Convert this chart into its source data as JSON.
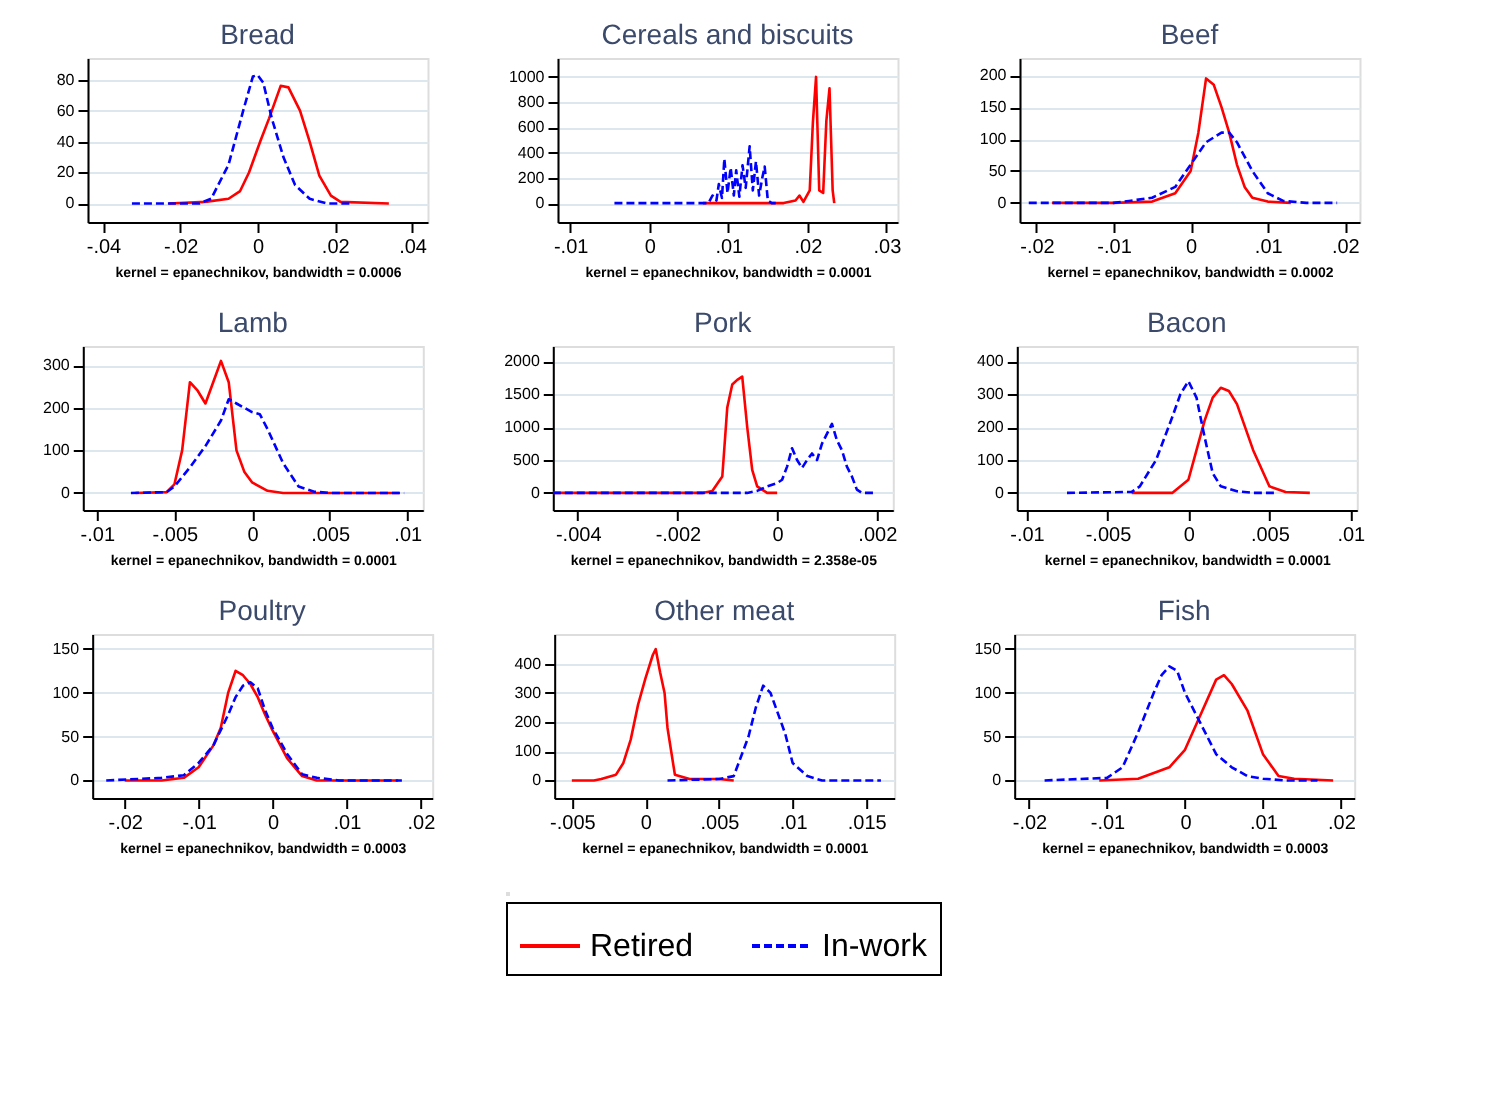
{
  "chart_data": [
    {
      "type": "line",
      "title": "Bread",
      "xlabel": "kernel = epanechnikov, bandwidth = 0.0006",
      "grid": "y",
      "legend": "bottom",
      "xlim": [
        -0.044,
        0.044
      ],
      "xticks": [
        {
          "value": -0.04,
          "label": "-.04"
        },
        {
          "value": -0.02,
          "label": "-.02"
        },
        {
          "value": 0,
          "label": "0"
        },
        {
          "value": 0.02,
          "label": ".02"
        },
        {
          "value": 0.04,
          "label": ".04"
        }
      ],
      "ylim": [
        -12,
        94
      ],
      "yticks": [
        0,
        20,
        40,
        60,
        80
      ],
      "series": [
        {
          "name": "Retired",
          "color": "#ff0000",
          "line_style": "solid",
          "x": [
            -0.023,
            -0.0135,
            -0.0075,
            -0.0045,
            -0.0022,
            0.0007,
            0.003,
            0.006,
            0.008,
            0.011,
            0.0135,
            0.016,
            0.019,
            0.0215,
            0.034
          ],
          "values": [
            0,
            1,
            3,
            8,
            20,
            40,
            55,
            76,
            75,
            60,
            40,
            18,
            5,
            1,
            0
          ]
        },
        {
          "name": "In-work",
          "color": "#0000ff",
          "line_style": "dashed",
          "x": [
            -0.0325,
            -0.015,
            -0.012,
            -0.0075,
            -0.0037,
            -0.0012,
            0,
            0.0015,
            0.0037,
            0.0067,
            0.0097,
            0.0135,
            0.018,
            0.021,
            0.024
          ],
          "values": [
            0,
            0,
            3,
            25,
            60,
            82,
            83,
            78,
            55,
            30,
            12,
            3,
            0,
            0,
            0
          ]
        }
      ]
    },
    {
      "type": "line",
      "title": "Cereals and biscuits",
      "xlabel": "kernel = epanechnikov, bandwidth = 0.0001",
      "grid": "y",
      "xlim": [
        -0.0116,
        0.0314
      ],
      "xticks": [
        {
          "value": -0.01,
          "label": "-.01"
        },
        {
          "value": 0,
          "label": "0"
        },
        {
          "value": 0.01,
          "label": ".01"
        },
        {
          "value": 0.02,
          "label": ".02"
        },
        {
          "value": 0.03,
          "label": ".03"
        }
      ],
      "ylim": [
        -150,
        1150
      ],
      "yticks": [
        0,
        200,
        400,
        600,
        800,
        1000
      ],
      "series": [
        {
          "color": "#ff0000",
          "line_style": "solid",
          "x": [
            0.0068,
            0.017,
            0.0185,
            0.019,
            0.0195,
            0.0203,
            0.0207,
            0.0211,
            0.0215,
            0.022,
            0.0224,
            0.0228,
            0.0232,
            0.0234
          ],
          "values": [
            0,
            0,
            20,
            60,
            10,
            100,
            640,
            1000,
            100,
            80,
            650,
            910,
            100,
            0
          ]
        },
        {
          "color": "#0000ff",
          "line_style": "dashed",
          "x": [
            -0.0044,
            0.006,
            0.0075,
            0.008,
            0.0085,
            0.0088,
            0.0092,
            0.0095,
            0.0099,
            0.0103,
            0.0107,
            0.011,
            0.0114,
            0.0118,
            0.0122,
            0.0127,
            0.0131,
            0.0135,
            0.0139,
            0.0143,
            0.0146,
            0.015,
            0.0155,
            0.016
          ],
          "values": [
            0,
            0,
            0,
            60,
            20,
            150,
            40,
            350,
            80,
            280,
            60,
            260,
            50,
            300,
            120,
            450,
            100,
            330,
            60,
            200,
            290,
            20,
            0,
            0
          ]
        }
      ]
    },
    {
      "type": "line",
      "title": "Beef",
      "xlabel": "kernel = epanechnikov, bandwidth = 0.0002",
      "grid": "y",
      "xlim": [
        -0.0222,
        0.0219
      ],
      "xticks": [
        {
          "value": -0.02,
          "label": "-.02"
        },
        {
          "value": -0.01,
          "label": "-.01"
        },
        {
          "value": 0,
          "label": "0"
        },
        {
          "value": 0.01,
          "label": ".01"
        },
        {
          "value": 0.02,
          "label": ".02"
        }
      ],
      "ylim": [
        -30,
        227
      ],
      "yticks": [
        0,
        50,
        100,
        150,
        200
      ],
      "series": [
        {
          "color": "#ff0000",
          "line_style": "solid",
          "x": [
            -0.018,
            -0.01,
            -0.005,
            -0.002,
            0,
            0.001,
            0.002,
            0.003,
            0.004,
            0.005,
            0.006,
            0.007,
            0.008,
            0.01,
            0.013
          ],
          "values": [
            0,
            0,
            2,
            15,
            50,
            110,
            195,
            185,
            150,
            110,
            60,
            25,
            8,
            2,
            0
          ]
        },
        {
          "color": "#0000ff",
          "line_style": "dashed",
          "x": [
            -0.021,
            -0.01,
            -0.008,
            -0.005,
            -0.002,
            0,
            0.002,
            0.004,
            0.005,
            0.006,
            0.008,
            0.01,
            0.012,
            0.015,
            0.019
          ],
          "values": [
            0,
            0,
            3,
            8,
            25,
            60,
            95,
            110,
            110,
            95,
            50,
            15,
            3,
            0,
            0
          ]
        }
      ]
    },
    {
      "type": "line",
      "title": "Lamb",
      "xlabel": "kernel = epanechnikov, bandwidth = 0.0001",
      "grid": "y",
      "xlim": [
        -0.0109,
        0.011
      ],
      "xticks": [
        {
          "value": -0.01,
          "label": "-.01"
        },
        {
          "value": -0.005,
          "label": "-.005"
        },
        {
          "value": 0,
          "label": "0"
        },
        {
          "value": 0.005,
          "label": ".005"
        },
        {
          "value": 0.01,
          "label": ".01"
        }
      ],
      "ylim": [
        -40,
        345
      ],
      "yticks": [
        0,
        100,
        200,
        300
      ],
      "series": [
        {
          "color": "#ff0000",
          "line_style": "solid",
          "x": [
            -0.0075,
            -0.0055,
            -0.005,
            -0.0045,
            -0.004,
            -0.0035,
            -0.003,
            -0.0025,
            -0.002,
            -0.0015,
            -0.001,
            -0.0005,
            0,
            0.001,
            0.002,
            0.0095
          ],
          "values": [
            0,
            2,
            20,
            100,
            260,
            240,
            210,
            260,
            310,
            260,
            100,
            50,
            25,
            5,
            0,
            0
          ]
        },
        {
          "color": "#0000ff",
          "line_style": "dashed",
          "x": [
            -0.0078,
            -0.0055,
            -0.005,
            -0.004,
            -0.003,
            -0.002,
            -0.0015,
            -0.001,
            0,
            0.0005,
            0.001,
            0.002,
            0.003,
            0.004,
            0.005,
            0.0098
          ],
          "values": [
            0,
            2,
            15,
            60,
            110,
            170,
            220,
            210,
            190,
            185,
            150,
            70,
            15,
            3,
            0,
            0
          ]
        }
      ]
    },
    {
      "type": "line",
      "title": "Pork",
      "xlabel": "kernel = epanechnikov, bandwidth = 2.358e-05",
      "grid": "y",
      "xlim": [
        -0.0045,
        0.00232
      ],
      "xticks": [
        {
          "value": -0.004,
          "label": "-.004"
        },
        {
          "value": -0.002,
          "label": "-.002"
        },
        {
          "value": 0,
          "label": "0"
        },
        {
          "value": 0.002,
          "label": ".002"
        }
      ],
      "ylim": [
        -260,
        2235
      ],
      "yticks": [
        0,
        500,
        1000,
        1500,
        2000
      ],
      "series": [
        {
          "color": "#ff0000",
          "line_style": "solid",
          "x": [
            -0.0045,
            -0.0015,
            -0.0013,
            -0.0011,
            -0.001,
            -0.0009,
            -0.0008,
            -0.0007,
            -0.0006,
            -0.0005,
            -0.0004,
            -0.0002,
            0
          ],
          "values": [
            0,
            0,
            30,
            250,
            1300,
            1650,
            1720,
            1770,
            1000,
            350,
            100,
            0,
            0
          ]
        },
        {
          "color": "#0000ff",
          "line_style": "dashed",
          "x": [
            -0.0045,
            -0.0006,
            -0.0004,
            -0.0002,
            0,
            0.0001,
            0.0002,
            0.0003,
            0.0004,
            0.0005,
            0.0006,
            0.0007,
            0.0008,
            0.0009,
            0.0011,
            0.0012,
            0.0013,
            0.0014,
            0.0015,
            0.0016,
            0.0017,
            0.002
          ],
          "values": [
            0,
            0,
            30,
            100,
            150,
            200,
            400,
            680,
            500,
            380,
            500,
            600,
            500,
            750,
            1050,
            800,
            650,
            400,
            250,
            50,
            0,
            0
          ]
        }
      ]
    },
    {
      "type": "line",
      "title": "Bacon",
      "xlabel": "kernel = epanechnikov, bandwidth = 0.0001",
      "grid": "y",
      "xlim": [
        -0.0106,
        0.0104
      ],
      "xticks": [
        {
          "value": -0.01,
          "label": "-.01"
        },
        {
          "value": -0.005,
          "label": "-.005"
        },
        {
          "value": 0,
          "label": "0"
        },
        {
          "value": 0.005,
          "label": ".005"
        },
        {
          "value": 0.01,
          "label": ".01"
        }
      ],
      "ylim": [
        -52,
        447
      ],
      "yticks": [
        0,
        100,
        200,
        300,
        400
      ],
      "series": [
        {
          "color": "#ff0000",
          "line_style": "solid",
          "x": [
            -0.0035,
            -0.001,
            0,
            0.0005,
            0.001,
            0.0015,
            0.002,
            0.0025,
            0.003,
            0.0035,
            0.004,
            0.005,
            0.006,
            0.0075
          ],
          "values": [
            0,
            0,
            40,
            130,
            220,
            290,
            320,
            310,
            270,
            200,
            130,
            20,
            3,
            0
          ]
        },
        {
          "color": "#0000ff",
          "line_style": "dashed",
          "x": [
            -0.0075,
            -0.0035,
            -0.003,
            -0.002,
            -0.001,
            -0.0005,
            0,
            0.0005,
            0.001,
            0.0015,
            0.002,
            0.003,
            0.004,
            0.0055
          ],
          "values": [
            0,
            3,
            20,
            100,
            230,
            300,
            340,
            290,
            170,
            60,
            20,
            5,
            0,
            0
          ]
        }
      ]
    },
    {
      "type": "line",
      "title": "Poultry",
      "xlabel": "kernel = epanechnikov, bandwidth = 0.0003",
      "grid": "y",
      "xlim": [
        -0.0244,
        0.0216
      ],
      "xticks": [
        {
          "value": -0.02,
          "label": "-.02"
        },
        {
          "value": -0.01,
          "label": "-.01"
        },
        {
          "value": 0,
          "label": "0"
        },
        {
          "value": 0.01,
          "label": ".01"
        },
        {
          "value": 0.02,
          "label": ".02"
        }
      ],
      "ylim": [
        -20,
        167
      ],
      "yticks": [
        0,
        50,
        100,
        150
      ],
      "series": [
        {
          "color": "#ff0000",
          "line_style": "solid",
          "x": [
            -0.02,
            -0.015,
            -0.012,
            -0.01,
            -0.008,
            -0.007,
            -0.006,
            -0.005,
            -0.004,
            -0.003,
            -0.002,
            -0.001,
            0,
            0.002,
            0.004,
            0.006,
            0.017
          ],
          "values": [
            0,
            0,
            3,
            15,
            40,
            60,
            100,
            125,
            120,
            110,
            95,
            75,
            57,
            25,
            5,
            0,
            0
          ]
        },
        {
          "color": "#0000ff",
          "line_style": "dashed",
          "x": [
            -0.0225,
            -0.015,
            -0.012,
            -0.01,
            -0.008,
            -0.006,
            -0.005,
            -0.004,
            -0.003,
            -0.002,
            -0.001,
            0,
            0.002,
            0.004,
            0.006,
            0.009,
            0.0175
          ],
          "values": [
            0,
            3,
            6,
            20,
            40,
            75,
            95,
            108,
            112,
            105,
            80,
            60,
            30,
            7,
            3,
            0,
            0
          ]
        }
      ]
    },
    {
      "type": "line",
      "title": "Other meat",
      "xlabel": "kernel = epanechnikov, bandwidth = 0.0001",
      "grid": "y",
      "xlim": [
        -0.0062,
        0.0169
      ],
      "xticks": [
        {
          "value": -0.005,
          "label": "-.005"
        },
        {
          "value": 0,
          "label": "0"
        },
        {
          "value": 0.005,
          "label": ".005"
        },
        {
          "value": 0.01,
          "label": ".01"
        },
        {
          "value": 0.015,
          "label": ".015"
        }
      ],
      "ylim": [
        -60,
        502
      ],
      "yticks": [
        0,
        100,
        200,
        300,
        400
      ],
      "series": [
        {
          "color": "#ff0000",
          "line_style": "solid",
          "x": [
            -0.005,
            -0.0035,
            -0.003,
            -0.002,
            -0.0015,
            -0.001,
            -0.0005,
            0,
            0.0005,
            0.0007,
            0.001,
            0.0013,
            0.0015,
            0.002,
            0.003,
            0.005,
            0.006
          ],
          "values": [
            0,
            0,
            5,
            20,
            60,
            140,
            260,
            350,
            430,
            450,
            370,
            300,
            180,
            20,
            5,
            5,
            0
          ]
        },
        {
          "color": "#0000ff",
          "line_style": "dashed",
          "x": [
            0.0015,
            0.005,
            0.006,
            0.007,
            0.0075,
            0.008,
            0.0085,
            0.009,
            0.0095,
            0.01,
            0.011,
            0.012,
            0.016
          ],
          "values": [
            0,
            5,
            15,
            150,
            250,
            325,
            300,
            230,
            160,
            60,
            15,
            0,
            0
          ]
        }
      ]
    },
    {
      "type": "line",
      "title": "Fish",
      "xlabel": "kernel = epanechnikov, bandwidth = 0.0003",
      "grid": "y",
      "xlim": [
        -0.0219,
        0.0217
      ],
      "xticks": [
        {
          "value": -0.02,
          "label": "-.02"
        },
        {
          "value": -0.01,
          "label": "-.01"
        },
        {
          "value": 0,
          "label": "0"
        },
        {
          "value": 0.01,
          "label": ".01"
        },
        {
          "value": 0.02,
          "label": ".02"
        }
      ],
      "ylim": [
        -20,
        167
      ],
      "yticks": [
        0,
        50,
        100,
        150
      ],
      "series": [
        {
          "color": "#ff0000",
          "line_style": "solid",
          "x": [
            -0.011,
            -0.006,
            -0.002,
            0,
            0.002,
            0.004,
            0.005,
            0.006,
            0.008,
            0.01,
            0.012,
            0.014,
            0.019
          ],
          "values": [
            0,
            2,
            15,
            35,
            75,
            115,
            120,
            110,
            80,
            30,
            5,
            2,
            0
          ]
        },
        {
          "color": "#0000ff",
          "line_style": "dashed",
          "x": [
            -0.018,
            -0.01,
            -0.008,
            -0.006,
            -0.004,
            -0.003,
            -0.002,
            -0.001,
            0,
            0.002,
            0.004,
            0.006,
            0.008,
            0.01,
            0.013,
            0.017
          ],
          "values": [
            0,
            3,
            15,
            55,
            100,
            120,
            130,
            125,
            100,
            65,
            30,
            15,
            5,
            2,
            0,
            0
          ]
        }
      ]
    }
  ]
}
